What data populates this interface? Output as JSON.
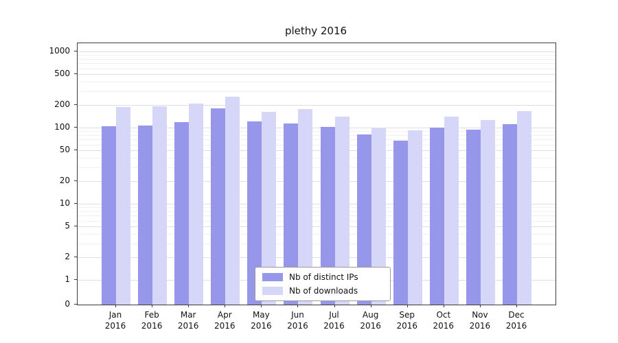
{
  "chart_data": {
    "type": "bar",
    "title": "plethy 2016",
    "yscale": "symlog",
    "grid": true,
    "legend_position": "lower center",
    "categories": [
      "Jan 2016",
      "Feb 2016",
      "Mar 2016",
      "Apr 2016",
      "May 2016",
      "Jun 2016",
      "Jul 2016",
      "Aug 2016",
      "Sep 2016",
      "Oct 2016",
      "Nov 2016",
      "Dec 2016"
    ],
    "series": [
      {
        "name": "Nb of distinct IPs",
        "color": "#9696eb",
        "values": [
          105,
          107,
          118,
          180,
          120,
          113,
          102,
          82,
          68,
          100,
          93,
          112
        ]
      },
      {
        "name": "Nb of downloads",
        "color": "#d6d6f8",
        "values": [
          185,
          190,
          205,
          255,
          160,
          175,
          140,
          97,
          92,
          138,
          125,
          165
        ]
      }
    ],
    "y_ticks": [
      0,
      1,
      2,
      5,
      10,
      20,
      50,
      100,
      200,
      500,
      1000
    ],
    "ylim": [
      0,
      1300
    ],
    "xlabel": "",
    "ylabel": ""
  }
}
